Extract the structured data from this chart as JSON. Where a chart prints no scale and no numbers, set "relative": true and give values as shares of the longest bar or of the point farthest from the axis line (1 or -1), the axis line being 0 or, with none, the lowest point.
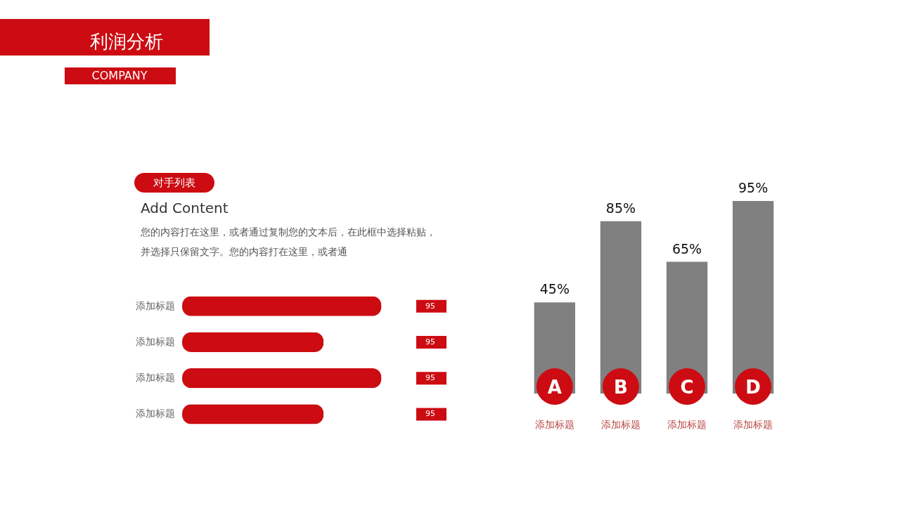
{
  "chart_data": [
    {
      "type": "bar",
      "orientation": "horizontal",
      "relative": true,
      "title": "利润分析",
      "subtitle": "COMPANY",
      "annotations": [
        "对手列表",
        "Add Content",
        "您的内容打在这里，或者通过复制您的文本后，在此框中选择粘贴，",
        "并选择只保留文字。您的内容打在这里，或者通",
        "95",
        "95",
        "95",
        "95"
      ],
      "categories": [
        "添加标题",
        "添加标题",
        "添加标题",
        "添加标题"
      ],
      "values": [
        1,
        0.71,
        1,
        0.71
      ],
      "color": "#cc0c12"
    },
    {
      "type": "bar",
      "categories": [
        "添加标题",
        "添加标题",
        "添加标题",
        "添加标题"
      ],
      "values": [
        45,
        85,
        65,
        95
      ],
      "value_labels": [
        "45%",
        "85%",
        "65%",
        "95%"
      ],
      "annotations": [
        "A",
        "B",
        "C",
        "D"
      ],
      "color": "#808080"
    }
  ]
}
